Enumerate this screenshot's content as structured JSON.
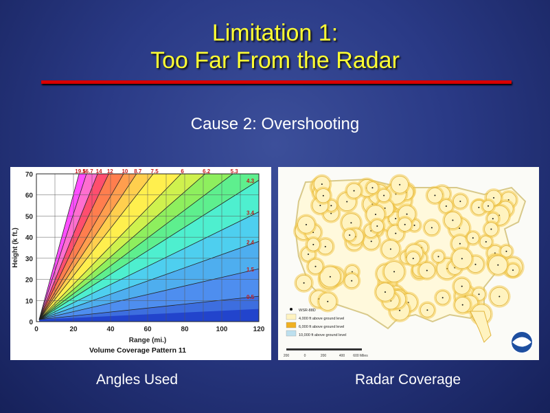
{
  "slide": {
    "title_line1": "Limitation 1:",
    "title_line2": "Too Far From the Radar",
    "subtitle": "Cause 2: Overshooting",
    "caption_left": "Angles Used",
    "caption_right": "Radar Coverage",
    "title_color": "#ffff33",
    "rule_color": "#d80000"
  },
  "chart_data": {
    "type": "line",
    "title": "Volume Coverage Pattern 11",
    "xlabel": "Range (mi.)",
    "ylabel": "Height (k ft.)",
    "xlim": [
      0,
      120
    ],
    "ylim": [
      0,
      70
    ],
    "x_ticks": [
      "0",
      "20",
      "40",
      "60",
      "80",
      "100",
      "120"
    ],
    "y_ticks": [
      "0",
      "10",
      "20",
      "30",
      "40",
      "50",
      "60",
      "70"
    ],
    "top_angle_labels": [
      "19.5",
      "16.7",
      "14",
      "12",
      "10",
      "8.7",
      "7.5",
      "6",
      "6.2",
      "5.3"
    ],
    "right_angle_labels": [
      "4.3",
      "3.4",
      "2.4",
      "1.5",
      "0.5"
    ],
    "series": [
      {
        "name": "19.5",
        "top_x": 23
      },
      {
        "name": "16.7",
        "top_x": 27
      },
      {
        "name": "14",
        "top_x": 33
      },
      {
        "name": "12",
        "top_x": 39
      },
      {
        "name": "10",
        "top_x": 47
      },
      {
        "name": "8.7",
        "top_x": 54
      },
      {
        "name": "7.5",
        "top_x": 63
      },
      {
        "name": "6",
        "top_x": 78
      },
      {
        "name": "6.2",
        "top_x": 91
      },
      {
        "name": "5.3",
        "top_x": 106
      },
      {
        "name": "4.3",
        "right_y": 67
      },
      {
        "name": "3.4",
        "right_y": 52
      },
      {
        "name": "2.4",
        "right_y": 38
      },
      {
        "name": "1.5",
        "right_y": 25
      },
      {
        "name": "0.5",
        "right_y": 12
      }
    ],
    "band_colors": [
      "#ff44ff",
      "#ff66cc",
      "#ff4466",
      "#ff7744",
      "#ff9944",
      "#ffcc44",
      "#ffee44",
      "#ccf044",
      "#88ee55",
      "#55ee88",
      "#44eecc",
      "#44ccee",
      "#44aaee",
      "#4488ee",
      "#3366dd"
    ],
    "grid": true
  },
  "map": {
    "legend": [
      {
        "label": "WSR-88D",
        "color": "#111111"
      },
      {
        "label": "4,000 ft above ground level",
        "color": "#fff3c0"
      },
      {
        "label": "6,000 ft above ground level",
        "color": "#f0b020"
      },
      {
        "label": "10,000 ft above ground level",
        "color": "#bde0ee"
      }
    ],
    "scale_labels": [
      "200",
      "0",
      "200",
      "400",
      "600 Miles"
    ],
    "logo": "NOAA"
  }
}
